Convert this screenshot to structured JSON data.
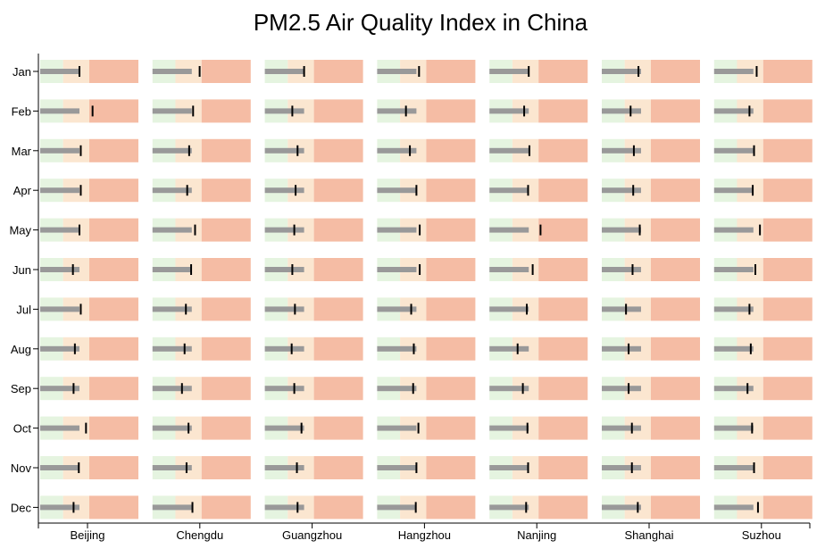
{
  "chart_data": {
    "type": "bullet",
    "title": "PM2.5 Air Quality Index in China",
    "xlabel": "",
    "ylabel": "",
    "cities": [
      "Beijing",
      "Chengdu",
      "Guangzhou",
      "Hangzhou",
      "Nanjing",
      "Shanghai",
      "Suzhou"
    ],
    "months": [
      "Jan",
      "Feb",
      "Mar",
      "Apr",
      "May",
      "Jun",
      "Jul",
      "Aug",
      "Sep",
      "Oct",
      "Nov",
      "Dec"
    ],
    "ranges": [
      35,
      75,
      115
    ],
    "colors": {
      "good": "#e5f4e0",
      "moderate": "#fbe6d0",
      "poor": "#f5bca4",
      "bar": "#999999",
      "marker": "#000000"
    },
    "series": [
      {
        "name": "Beijing",
        "values": [
          60,
          60,
          60,
          60,
          60,
          60,
          60,
          60,
          60,
          60,
          60,
          60
        ],
        "markers": [
          60,
          80,
          62,
          62,
          60,
          50,
          62,
          53,
          51,
          70,
          59,
          51
        ]
      },
      {
        "name": "Chengdu",
        "values": [
          60,
          60,
          60,
          60,
          60,
          60,
          60,
          60,
          60,
          60,
          60,
          60
        ],
        "markers": [
          72,
          62,
          56,
          53,
          65,
          59,
          51,
          49,
          45,
          55,
          52,
          61
        ]
      },
      {
        "name": "Guangzhou",
        "values": [
          60,
          60,
          60,
          60,
          60,
          60,
          60,
          60,
          60,
          60,
          60,
          60
        ],
        "markers": [
          60,
          42,
          50,
          47,
          45,
          42,
          46,
          41,
          45,
          56,
          49,
          50
        ]
      },
      {
        "name": "Hangzhou",
        "values": [
          60,
          60,
          60,
          60,
          60,
          60,
          60,
          60,
          60,
          60,
          60,
          60
        ],
        "markers": [
          64,
          44,
          50,
          60,
          65,
          65,
          52,
          56,
          55,
          63,
          60,
          59
        ]
      },
      {
        "name": "Nanjing",
        "values": [
          60,
          60,
          60,
          60,
          60,
          60,
          60,
          60,
          60,
          60,
          60,
          60
        ],
        "markers": [
          60,
          53,
          61,
          59,
          78,
          66,
          57,
          43,
          51,
          58,
          59,
          56
        ]
      },
      {
        "name": "Shanghai",
        "values": [
          60,
          60,
          60,
          60,
          60,
          60,
          60,
          60,
          60,
          60,
          60,
          60
        ],
        "markers": [
          56,
          44,
          49,
          48,
          58,
          47,
          37,
          41,
          41,
          46,
          46,
          55
        ]
      },
      {
        "name": "Suzhou",
        "values": [
          60,
          60,
          60,
          60,
          60,
          60,
          60,
          60,
          60,
          60,
          60,
          60
        ],
        "markers": [
          65,
          54,
          61,
          59,
          70,
          63,
          54,
          56,
          51,
          58,
          61,
          67
        ]
      }
    ]
  }
}
